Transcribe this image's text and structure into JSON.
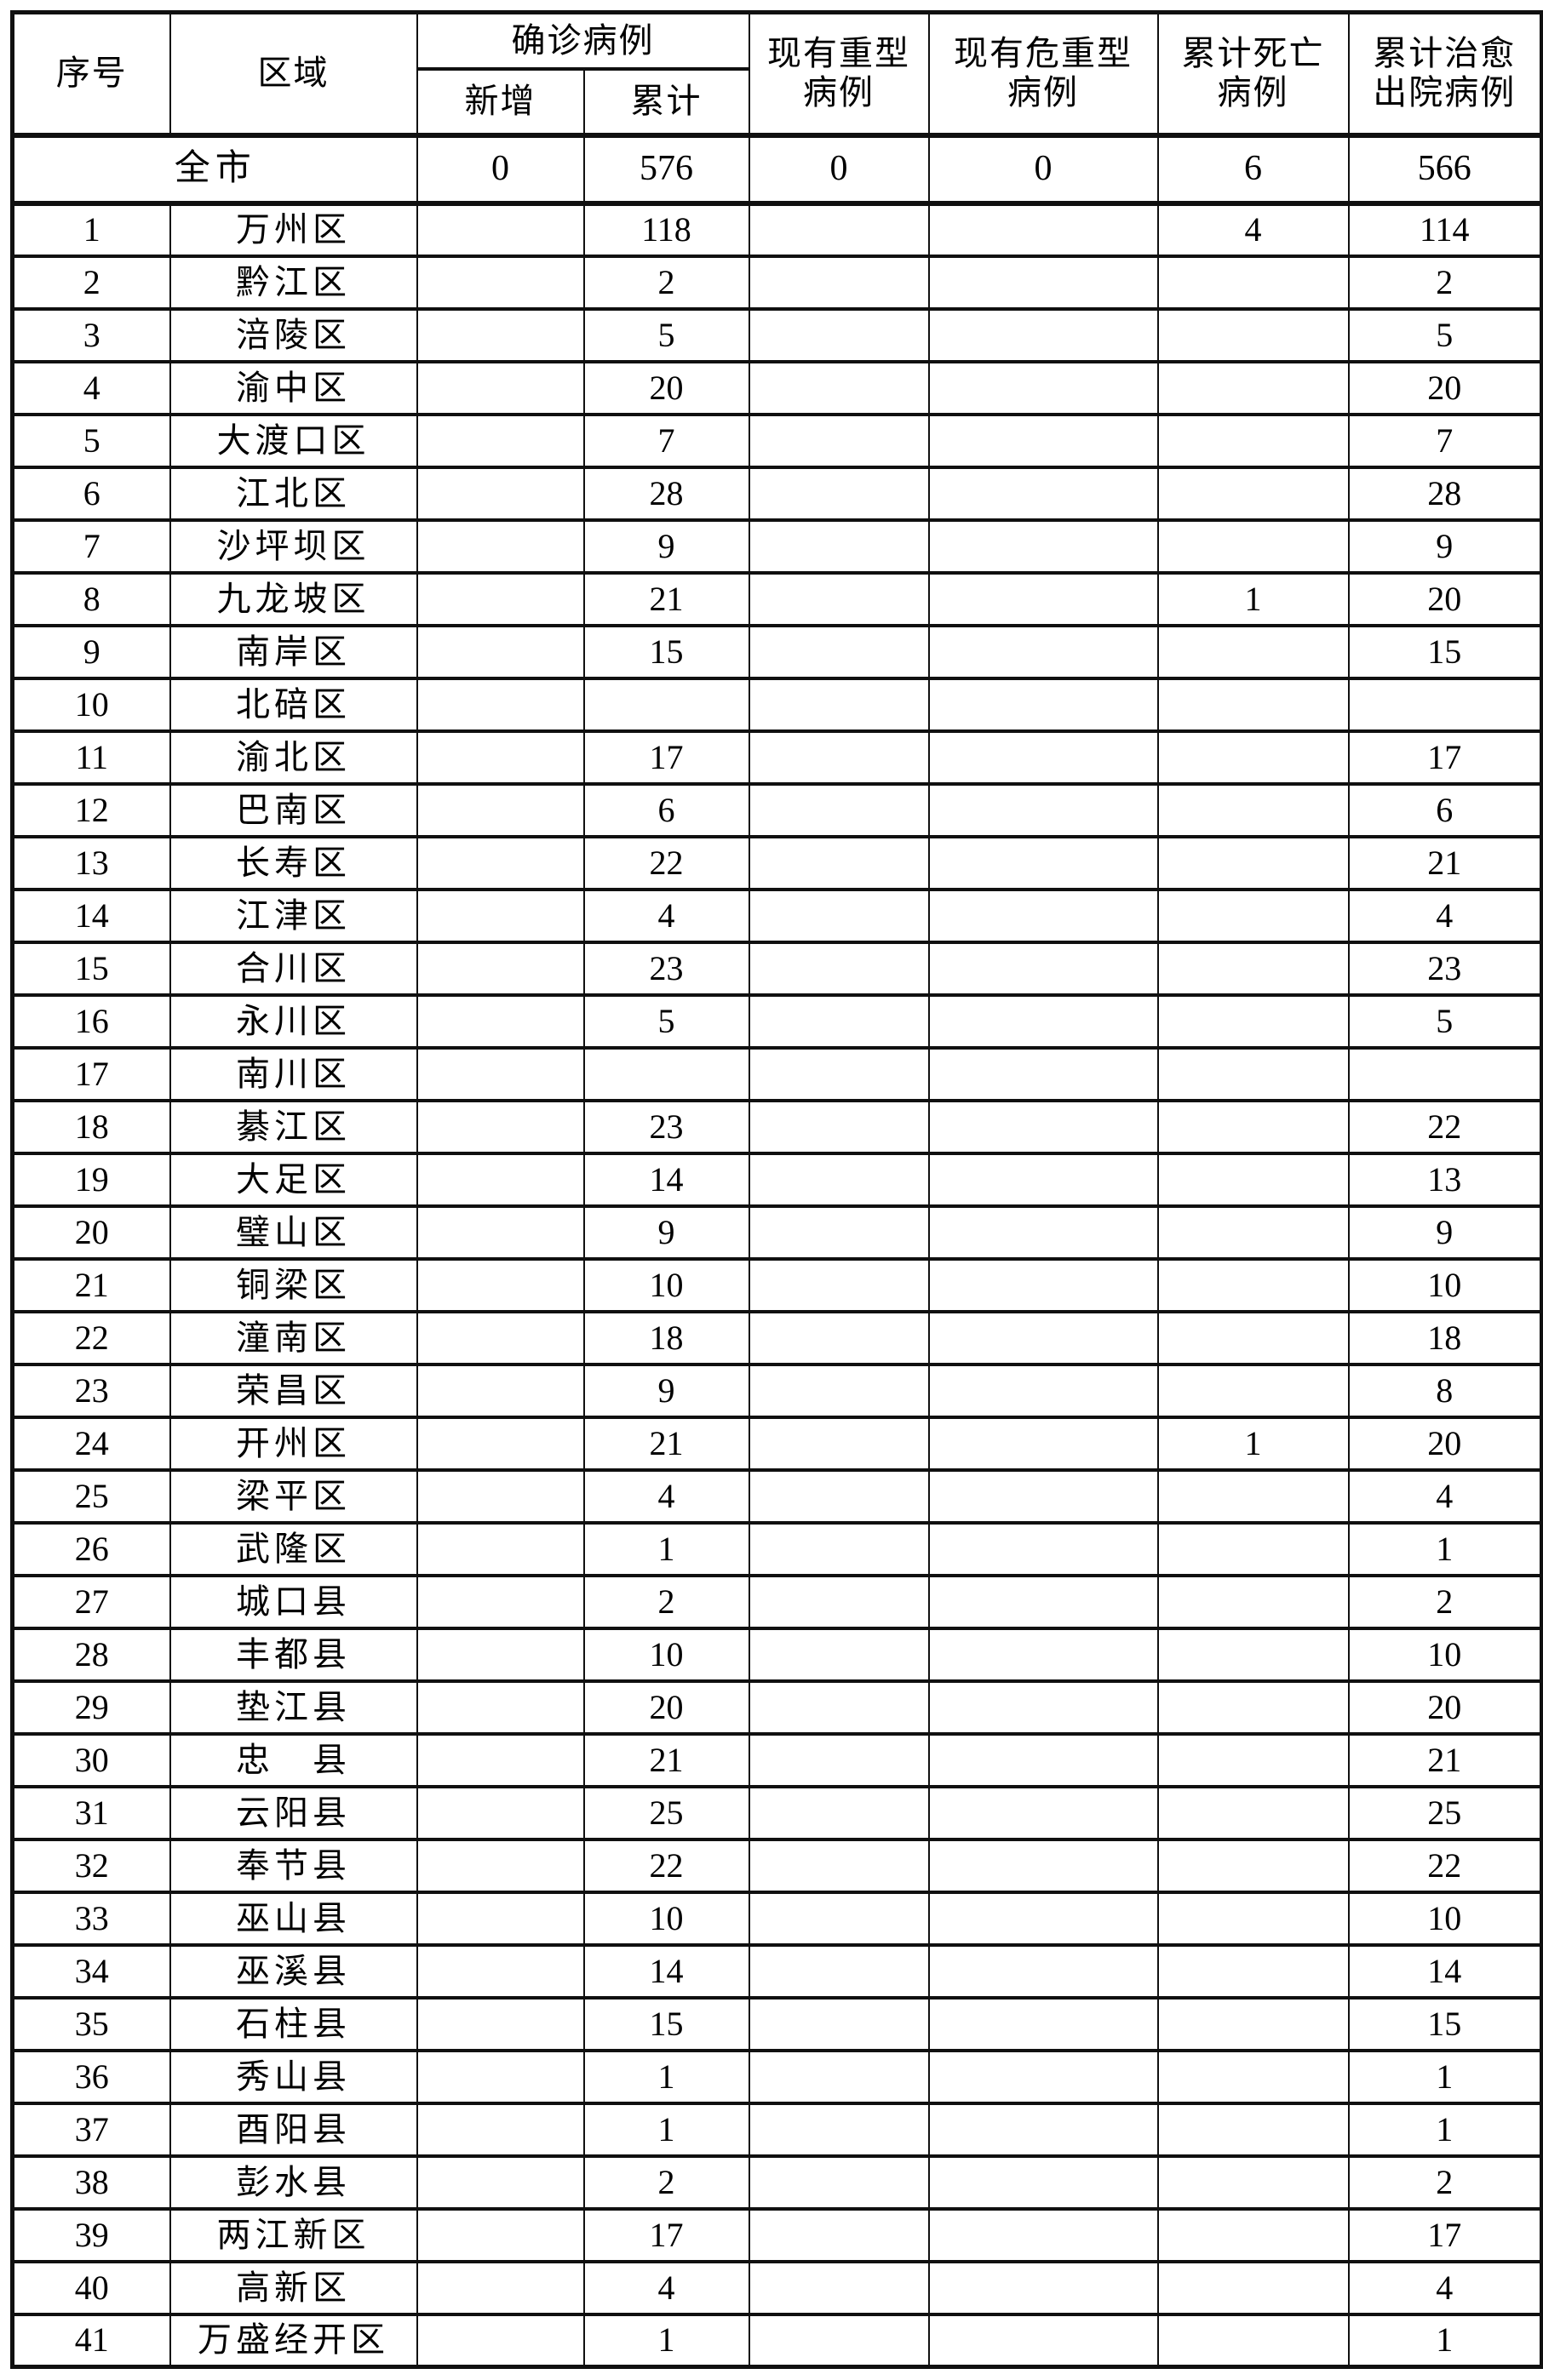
{
  "table": {
    "header": {
      "col_no": "序号",
      "col_region": "区域",
      "col_confirmed": "确诊病例",
      "col_confirmed_new": "新增",
      "col_confirmed_total": "累计",
      "col_severe": "现有重型\n病例",
      "col_critical": "现有危重型\n病例",
      "col_deaths": "累计死亡\n病例",
      "col_cured": "累计治愈\n出院病例"
    },
    "citywide": {
      "region": "全市",
      "new": "0",
      "total": "576",
      "severe": "0",
      "critical": "0",
      "deaths": "6",
      "cured": "566"
    },
    "row_fields": [
      "no",
      "region",
      "new",
      "total",
      "severe",
      "critical",
      "deaths",
      "cured"
    ],
    "rows": [
      [
        "1",
        "万州区",
        "",
        "118",
        "",
        "",
        "4",
        "114"
      ],
      [
        "2",
        "黔江区",
        "",
        "2",
        "",
        "",
        "",
        "2"
      ],
      [
        "3",
        "涪陵区",
        "",
        "5",
        "",
        "",
        "",
        "5"
      ],
      [
        "4",
        "渝中区",
        "",
        "20",
        "",
        "",
        "",
        "20"
      ],
      [
        "5",
        "大渡口区",
        "",
        "7",
        "",
        "",
        "",
        "7"
      ],
      [
        "6",
        "江北区",
        "",
        "28",
        "",
        "",
        "",
        "28"
      ],
      [
        "7",
        "沙坪坝区",
        "",
        "9",
        "",
        "",
        "",
        "9"
      ],
      [
        "8",
        "九龙坡区",
        "",
        "21",
        "",
        "",
        "1",
        "20"
      ],
      [
        "9",
        "南岸区",
        "",
        "15",
        "",
        "",
        "",
        "15"
      ],
      [
        "10",
        "北碚区",
        "",
        "",
        "",
        "",
        "",
        ""
      ],
      [
        "11",
        "渝北区",
        "",
        "17",
        "",
        "",
        "",
        "17"
      ],
      [
        "12",
        "巴南区",
        "",
        "6",
        "",
        "",
        "",
        "6"
      ],
      [
        "13",
        "长寿区",
        "",
        "22",
        "",
        "",
        "",
        "21"
      ],
      [
        "14",
        "江津区",
        "",
        "4",
        "",
        "",
        "",
        "4"
      ],
      [
        "15",
        "合川区",
        "",
        "23",
        "",
        "",
        "",
        "23"
      ],
      [
        "16",
        "永川区",
        "",
        "5",
        "",
        "",
        "",
        "5"
      ],
      [
        "17",
        "南川区",
        "",
        "",
        "",
        "",
        "",
        ""
      ],
      [
        "18",
        "綦江区",
        "",
        "23",
        "",
        "",
        "",
        "22"
      ],
      [
        "19",
        "大足区",
        "",
        "14",
        "",
        "",
        "",
        "13"
      ],
      [
        "20",
        "璧山区",
        "",
        "9",
        "",
        "",
        "",
        "9"
      ],
      [
        "21",
        "铜梁区",
        "",
        "10",
        "",
        "",
        "",
        "10"
      ],
      [
        "22",
        "潼南区",
        "",
        "18",
        "",
        "",
        "",
        "18"
      ],
      [
        "23",
        "荣昌区",
        "",
        "9",
        "",
        "",
        "",
        "8"
      ],
      [
        "24",
        "开州区",
        "",
        "21",
        "",
        "",
        "1",
        "20"
      ],
      [
        "25",
        "梁平区",
        "",
        "4",
        "",
        "",
        "",
        "4"
      ],
      [
        "26",
        "武隆区",
        "",
        "1",
        "",
        "",
        "",
        "1"
      ],
      [
        "27",
        "城口县",
        "",
        "2",
        "",
        "",
        "",
        "2"
      ],
      [
        "28",
        "丰都县",
        "",
        "10",
        "",
        "",
        "",
        "10"
      ],
      [
        "29",
        "垫江县",
        "",
        "20",
        "",
        "",
        "",
        "20"
      ],
      [
        "30",
        "忠　县",
        "",
        "21",
        "",
        "",
        "",
        "21"
      ],
      [
        "31",
        "云阳县",
        "",
        "25",
        "",
        "",
        "",
        "25"
      ],
      [
        "32",
        "奉节县",
        "",
        "22",
        "",
        "",
        "",
        "22"
      ],
      [
        "33",
        "巫山县",
        "",
        "10",
        "",
        "",
        "",
        "10"
      ],
      [
        "34",
        "巫溪县",
        "",
        "14",
        "",
        "",
        "",
        "14"
      ],
      [
        "35",
        "石柱县",
        "",
        "15",
        "",
        "",
        "",
        "15"
      ],
      [
        "36",
        "秀山县",
        "",
        "1",
        "",
        "",
        "",
        "1"
      ],
      [
        "37",
        "酉阳县",
        "",
        "1",
        "",
        "",
        "",
        "1"
      ],
      [
        "38",
        "彭水县",
        "",
        "2",
        "",
        "",
        "",
        "2"
      ],
      [
        "39",
        "两江新区",
        "",
        "17",
        "",
        "",
        "",
        "17"
      ],
      [
        "40",
        "高新区",
        "",
        "4",
        "",
        "",
        "",
        "4"
      ],
      [
        "41",
        "万盛经开区",
        "",
        "1",
        "",
        "",
        "",
        "1"
      ]
    ]
  }
}
